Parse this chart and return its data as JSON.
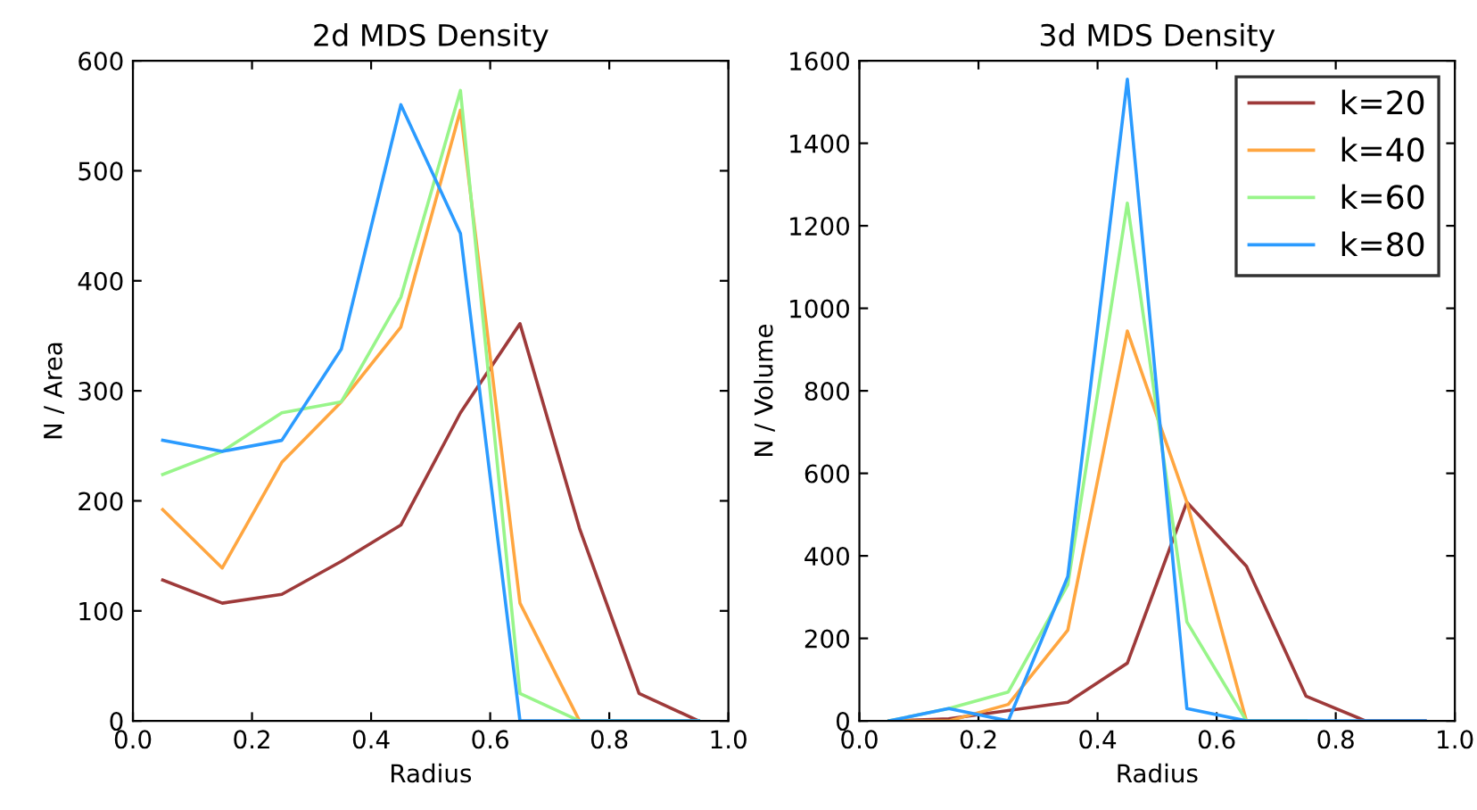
{
  "chart_data": [
    {
      "type": "line",
      "title": "2d MDS Density",
      "xlabel": "Radius",
      "ylabel": "N / Area",
      "x": [
        0.05,
        0.15,
        0.25,
        0.35,
        0.45,
        0.55,
        0.65,
        0.75,
        0.85,
        0.95
      ],
      "xlim": [
        0.0,
        1.0
      ],
      "xticks": [
        {
          "value": 0.0,
          "label": "0.0"
        },
        {
          "value": 0.2,
          "label": "0.2"
        },
        {
          "value": 0.4,
          "label": "0.4"
        },
        {
          "value": 0.6,
          "label": "0.6"
        },
        {
          "value": 0.8,
          "label": "0.8"
        },
        {
          "value": 1.0,
          "label": "1.0"
        }
      ],
      "ylim": [
        0,
        600
      ],
      "yticks": [
        0,
        100,
        200,
        300,
        400,
        500,
        600
      ],
      "grid": false,
      "legend": false,
      "series": [
        {
          "color": "#9e3a3a",
          "values": [
            128,
            107,
            115,
            145,
            178,
            280,
            361,
            175,
            25,
            0
          ]
        },
        {
          "color": "#ffa640",
          "values": [
            192,
            139,
            235,
            290,
            358,
            555,
            107,
            0,
            0,
            0
          ]
        },
        {
          "color": "#98f58a",
          "values": [
            224,
            245,
            280,
            290,
            385,
            573,
            25,
            0,
            0,
            0
          ]
        },
        {
          "color": "#2b9bff",
          "values": [
            255,
            245,
            255,
            338,
            560,
            443,
            0,
            0,
            0,
            0
          ]
        }
      ]
    },
    {
      "type": "line",
      "title": "3d MDS Density",
      "xlabel": "Radius",
      "ylabel": "N / Volume",
      "x": [
        0.05,
        0.15,
        0.25,
        0.35,
        0.45,
        0.55,
        0.65,
        0.75,
        0.85,
        0.95
      ],
      "xlim": [
        0.0,
        1.0
      ],
      "xticks": [
        {
          "value": 0.0,
          "label": "0.0"
        },
        {
          "value": 0.2,
          "label": "0.2"
        },
        {
          "value": 0.4,
          "label": "0.4"
        },
        {
          "value": 0.6,
          "label": "0.6"
        },
        {
          "value": 0.8,
          "label": "0.8"
        },
        {
          "value": 1.0,
          "label": "1.0"
        }
      ],
      "ylim": [
        0,
        1600
      ],
      "yticks": [
        0,
        200,
        400,
        600,
        800,
        1000,
        1200,
        1400,
        1600
      ],
      "grid": false,
      "legend": "top right",
      "series": [
        {
          "name": "k=20",
          "color": "#9e3a3a",
          "values": [
            0,
            5,
            25,
            45,
            140,
            530,
            375,
            60,
            0,
            0
          ]
        },
        {
          "name": "k=40",
          "color": "#ffa640",
          "values": [
            0,
            0,
            40,
            220,
            945,
            530,
            0,
            0,
            null,
            null
          ]
        },
        {
          "name": "k=60",
          "color": "#98f58a",
          "values": [
            0,
            30,
            70,
            330,
            1255,
            240,
            0,
            0,
            null,
            null
          ]
        },
        {
          "name": "k=80",
          "color": "#2b9bff",
          "values": [
            0,
            30,
            0,
            350,
            1555,
            30,
            0,
            0,
            0,
            0
          ]
        }
      ]
    }
  ]
}
